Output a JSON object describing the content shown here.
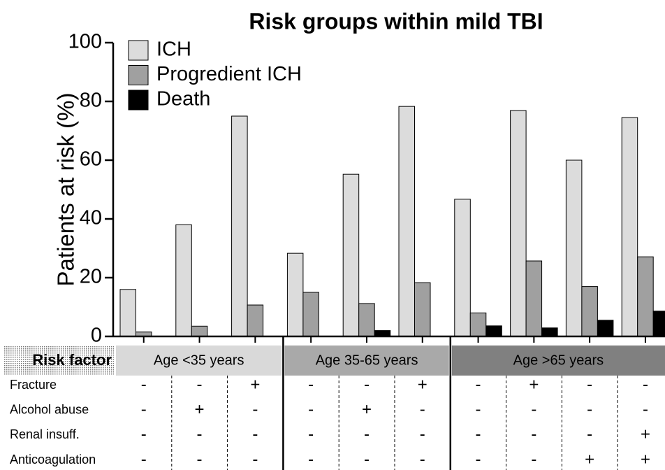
{
  "chart_data": {
    "type": "bar",
    "title": "Risk groups within mild TBI",
    "y_label": "Patients at risk (%)",
    "ylim": [
      0,
      100
    ],
    "yticks": [
      0,
      20,
      40,
      60,
      80,
      100
    ],
    "series": [
      {
        "name": "ICH",
        "color": "#dcdcdc",
        "values": [
          16,
          38,
          75,
          28.3,
          55.2,
          78.3,
          46.7,
          76.9,
          60,
          74.5
        ]
      },
      {
        "name": "Progredient ICH",
        "color": "#a0a0a0",
        "values": [
          1.5,
          3.5,
          10.7,
          15,
          11.2,
          18.3,
          8,
          25.7,
          17,
          27.1
        ]
      },
      {
        "name": "Death",
        "color": "#000000",
        "values": [
          0,
          0,
          0,
          0,
          2,
          0,
          3.6,
          2.9,
          5.5,
          8.6
        ]
      }
    ]
  },
  "table": {
    "header": "Risk factor",
    "groups": [
      {
        "label": "Age <35 years",
        "span": 3,
        "color": "#d9d9d9"
      },
      {
        "label": "Age 35-65 years",
        "span": 3,
        "color": "#a9a9a9"
      },
      {
        "label": "Age >65 years",
        "span": 4,
        "color": "#808080"
      }
    ],
    "rows": [
      {
        "label": "Fracture",
        "cells": [
          "-",
          "-",
          "+",
          "-",
          "-",
          "+",
          "-",
          "+",
          "-",
          "-"
        ]
      },
      {
        "label": "Alcohol abuse",
        "cells": [
          "-",
          "+",
          "-",
          "-",
          "+",
          "-",
          "-",
          "-",
          "-",
          "-"
        ]
      },
      {
        "label": "Renal insuff.",
        "cells": [
          "-",
          "-",
          "-",
          "-",
          "-",
          "-",
          "-",
          "-",
          "-",
          "+"
        ]
      },
      {
        "label": "Anticoagulation",
        "cells": [
          "-",
          "-",
          "-",
          "-",
          "-",
          "-",
          "-",
          "-",
          "+",
          "+"
        ]
      }
    ]
  }
}
